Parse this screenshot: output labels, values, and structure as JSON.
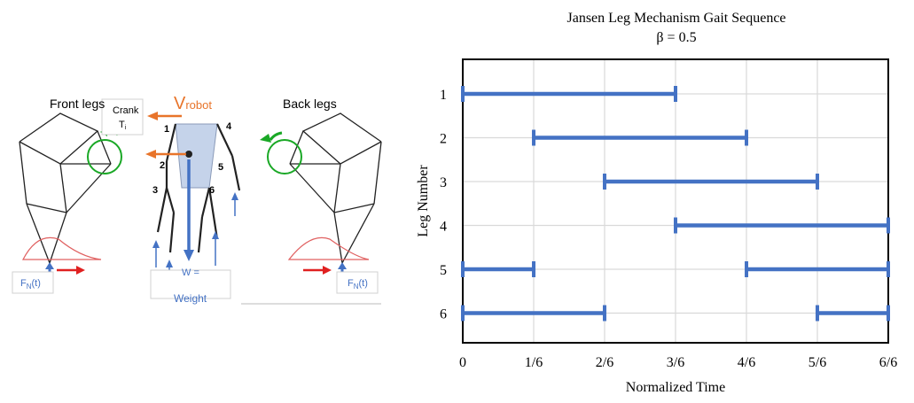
{
  "diagram": {
    "front_legs_label": "Front legs",
    "back_legs_label": "Back legs",
    "v_robot_main": "V",
    "v_robot_sub": "robot",
    "crank_label": "Crank",
    "torque_main": "T",
    "torque_sub": "i",
    "weight_eq": "W =",
    "weight_label": "Weight",
    "fn_front_main": "F",
    "fn_front_sub": "N",
    "fn_front_tail": "(t)",
    "fn_back_main": "F",
    "fn_back_sub": "N",
    "fn_back_tail": "(t)",
    "leg_numbers": [
      "1",
      "2",
      "3",
      "4",
      "5",
      "6"
    ],
    "colors": {
      "velocity_arrow": "#e8742a",
      "force_arrow": "#4472c4",
      "crank_circle": "#1aa826",
      "foot_path": "#e06060",
      "red_arrow": "#e02020",
      "body_fill": "#c5d3ea"
    }
  },
  "chart_data": {
    "type": "gantt",
    "title": "Jansen Leg Mechanism Gait Sequence",
    "subtitle": "β = 0.5",
    "xlabel": "Normalized Time",
    "ylabel": "Leg Number",
    "xlim": [
      0,
      1
    ],
    "xticks": [
      "0",
      "1/6",
      "2/6",
      "3/6",
      "4/6",
      "5/6",
      "6/6"
    ],
    "grid": true,
    "color": "#4472c4",
    "legs": [
      {
        "label": "1",
        "intervals": [
          [
            0,
            0.5
          ]
        ]
      },
      {
        "label": "2",
        "intervals": [
          [
            0.1667,
            0.6667
          ]
        ]
      },
      {
        "label": "3",
        "intervals": [
          [
            0.3333,
            0.8333
          ]
        ]
      },
      {
        "label": "4",
        "intervals": [
          [
            0.5,
            1.0
          ]
        ]
      },
      {
        "label": "5",
        "intervals": [
          [
            0,
            0.1667
          ],
          [
            0.6667,
            1.0
          ]
        ]
      },
      {
        "label": "6",
        "intervals": [
          [
            0,
            0.3333
          ],
          [
            0.8333,
            1.0
          ]
        ]
      }
    ]
  }
}
